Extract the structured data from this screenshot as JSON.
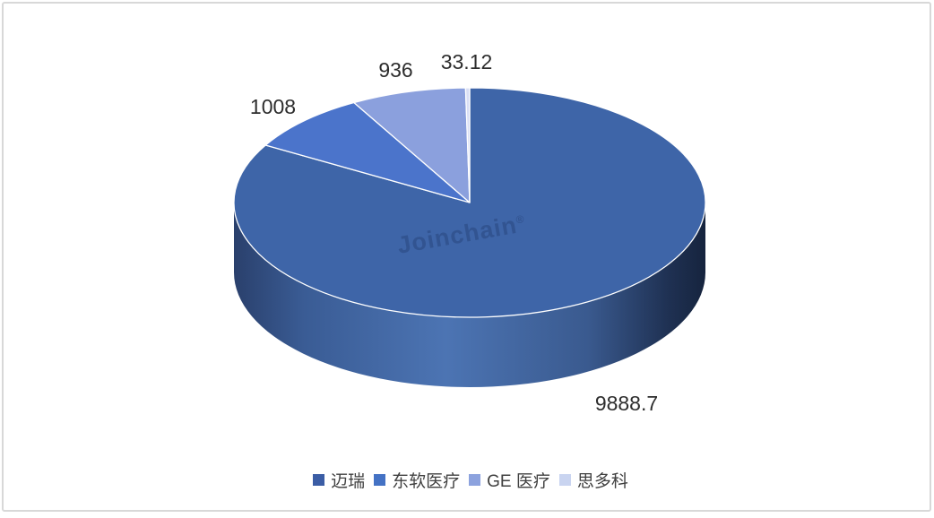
{
  "page": {
    "background": "#ffffff",
    "border_color": "#d8d8d8"
  },
  "watermark": {
    "text": "Joinchain",
    "registered_mark": "®"
  },
  "chart_data": {
    "type": "pie",
    "style": "3d-pie",
    "title": "",
    "categories": [
      "迈瑞",
      "东软医疗",
      "GE 医疗",
      "思多科"
    ],
    "values": [
      9888.7,
      1008,
      936,
      33.12
    ],
    "data_labels": [
      "9888.7",
      "1008",
      "936",
      "33.12"
    ],
    "colors": [
      "#3E65A8",
      "#4B74CB",
      "#8BA0DD",
      "#D8DEF5"
    ],
    "slice_border_color": "#ffffff",
    "side_gradient": [
      "#2A406C",
      "#3A5C95",
      "#4C74B3",
      "#3A5A8F",
      "#1F3153",
      "#16243E"
    ],
    "start_angle_deg": 0,
    "direction": "clockwise",
    "legend_position": "bottom",
    "data_label_color": "#2d2d2d"
  },
  "legend": {
    "items": [
      {
        "label": "迈瑞",
        "color": "#3B5DA5"
      },
      {
        "label": "东软医疗",
        "color": "#4472C4"
      },
      {
        "label": "GE 医疗",
        "color": "#8CA2DE"
      },
      {
        "label": "思多科",
        "color": "#C9D4F0"
      }
    ]
  }
}
